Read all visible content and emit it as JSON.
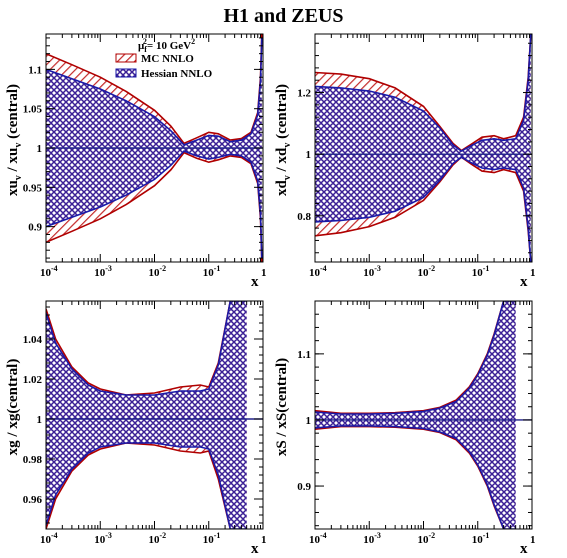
{
  "title": "H1 and ZEUS",
  "legend": {
    "scale_label": "μ",
    "scale_sub": "f",
    "scale_sup": "2",
    "scale_value": "= 10 GeV",
    "scale_unit_sup": "2",
    "entries": [
      {
        "name": "MC NNLO",
        "color": "#b00000",
        "pattern": "diagonal-hatch"
      },
      {
        "name": "Hessian NNLO",
        "color": "#1a1aa8",
        "pattern": "cross-hatch"
      }
    ]
  },
  "colors": {
    "mc": "#b00000",
    "mc_hatch": "#c42a2a",
    "hessian": "#1a1aa8",
    "hessian_hatch": "#3a1f95",
    "center_line": "#20208a"
  },
  "chart_data": [
    {
      "type": "area",
      "panel": "top-left",
      "ylabel_main": "xu",
      "ylabel_sub1": "v",
      "ylabel_mid": " / xu",
      "ylabel_sub2": "v",
      "ylabel_end": " (central)",
      "xlabel": "x",
      "x_scale": "log",
      "xlim": [
        0.0001,
        1
      ],
      "ylim": [
        0.855,
        1.145
      ],
      "x_ticks": [
        {
          "value": 0.0001,
          "base": "10",
          "exp": "-4"
        },
        {
          "value": 0.001,
          "base": "10",
          "exp": "-3"
        },
        {
          "value": 0.01,
          "base": "10",
          "exp": "-2"
        },
        {
          "value": 0.1,
          "base": "10",
          "exp": "-1"
        },
        {
          "value": 1,
          "base": "1",
          "exp": ""
        }
      ],
      "y_ticks": [
        0.9,
        0.95,
        1,
        1.05,
        1.1
      ],
      "y_tick_labels": [
        "0.9",
        "0.95",
        "1",
        "1.05",
        "1.1"
      ],
      "series": [
        {
          "name": "MC NNLO",
          "x": [
            0.0001,
            0.0003,
            0.001,
            0.003,
            0.01,
            0.02,
            0.035,
            0.06,
            0.1,
            0.15,
            0.25,
            0.4,
            0.6,
            0.8,
            0.9,
            0.95
          ],
          "upper": [
            1.12,
            1.106,
            1.09,
            1.072,
            1.048,
            1.028,
            1.006,
            1.013,
            1.02,
            1.018,
            1.01,
            1.012,
            1.02,
            1.045,
            1.09,
            1.145
          ],
          "lower": [
            0.88,
            0.894,
            0.91,
            0.928,
            0.952,
            0.972,
            0.994,
            0.987,
            0.982,
            0.985,
            0.99,
            0.988,
            0.98,
            0.955,
            0.91,
            0.855
          ]
        },
        {
          "name": "Hessian NNLO",
          "x": [
            0.0001,
            0.0003,
            0.001,
            0.003,
            0.01,
            0.02,
            0.035,
            0.06,
            0.1,
            0.15,
            0.25,
            0.4,
            0.6,
            0.8,
            0.9,
            0.95
          ],
          "upper": [
            1.1,
            1.088,
            1.075,
            1.06,
            1.04,
            1.022,
            1.004,
            1.01,
            1.016,
            1.015,
            1.008,
            1.01,
            1.018,
            1.042,
            1.085,
            1.14
          ],
          "lower": [
            0.9,
            0.912,
            0.925,
            0.94,
            0.96,
            0.978,
            0.996,
            0.99,
            0.986,
            0.988,
            0.992,
            0.99,
            0.982,
            0.958,
            0.915,
            0.86
          ]
        }
      ]
    },
    {
      "type": "area",
      "panel": "top-right",
      "ylabel_main": "xd",
      "ylabel_sub1": "v",
      "ylabel_mid": " / xd",
      "ylabel_sub2": "v",
      "ylabel_end": " (central)",
      "xlabel": "x",
      "x_scale": "log",
      "xlim": [
        0.0001,
        1
      ],
      "ylim": [
        0.65,
        1.39
      ],
      "x_ticks": [
        {
          "value": 0.0001,
          "base": "10",
          "exp": "-4"
        },
        {
          "value": 0.001,
          "base": "10",
          "exp": "-3"
        },
        {
          "value": 0.01,
          "base": "10",
          "exp": "-2"
        },
        {
          "value": 0.1,
          "base": "10",
          "exp": "-1"
        },
        {
          "value": 1,
          "base": "1",
          "exp": ""
        }
      ],
      "y_ticks": [
        0.8,
        1,
        1.2
      ],
      "y_tick_labels": [
        "0.8",
        "1",
        "1.2"
      ],
      "series": [
        {
          "name": "MC NNLO",
          "x": [
            0.0001,
            0.0003,
            0.001,
            0.003,
            0.01,
            0.02,
            0.035,
            0.05,
            0.08,
            0.12,
            0.2,
            0.3,
            0.5,
            0.7,
            0.85,
            0.95
          ],
          "upper": [
            1.265,
            1.26,
            1.245,
            1.215,
            1.155,
            1.09,
            1.035,
            1.012,
            1.035,
            1.055,
            1.06,
            1.05,
            1.06,
            1.12,
            1.25,
            1.39
          ],
          "lower": [
            0.735,
            0.745,
            0.765,
            0.795,
            0.85,
            0.91,
            0.965,
            0.99,
            0.965,
            0.945,
            0.94,
            0.95,
            0.94,
            0.88,
            0.75,
            0.65
          ]
        },
        {
          "name": "Hessian NNLO",
          "x": [
            0.0001,
            0.0003,
            0.001,
            0.003,
            0.01,
            0.02,
            0.035,
            0.05,
            0.08,
            0.12,
            0.2,
            0.3,
            0.5,
            0.7,
            0.85,
            0.95
          ],
          "upper": [
            1.22,
            1.215,
            1.205,
            1.185,
            1.14,
            1.085,
            1.03,
            1.01,
            1.03,
            1.045,
            1.05,
            1.045,
            1.05,
            1.11,
            1.24,
            1.39
          ],
          "lower": [
            0.78,
            0.785,
            0.795,
            0.815,
            0.86,
            0.915,
            0.97,
            0.99,
            0.97,
            0.955,
            0.95,
            0.955,
            0.95,
            0.89,
            0.76,
            0.65
          ]
        }
      ]
    },
    {
      "type": "area",
      "panel": "bottom-left",
      "ylabel_main": "xg / xg(central)",
      "ylabel_sub1": "",
      "ylabel_mid": "",
      "ylabel_sub2": "",
      "ylabel_end": "",
      "xlabel": "x",
      "x_scale": "log",
      "xlim": [
        0.0001,
        1
      ],
      "ylim": [
        0.945,
        1.059
      ],
      "x_ticks": [
        {
          "value": 0.0001,
          "base": "10",
          "exp": "-4"
        },
        {
          "value": 0.001,
          "base": "10",
          "exp": "-3"
        },
        {
          "value": 0.01,
          "base": "10",
          "exp": "-2"
        },
        {
          "value": 0.1,
          "base": "10",
          "exp": "-1"
        },
        {
          "value": 1,
          "base": "1",
          "exp": ""
        }
      ],
      "y_ticks": [
        0.96,
        0.98,
        1,
        1.02,
        1.04
      ],
      "y_tick_labels": [
        "0.96",
        "0.98",
        "1",
        "1.02",
        "1.04"
      ],
      "series": [
        {
          "name": "MC NNLO",
          "x": [
            0.0001,
            0.00015,
            0.0003,
            0.0006,
            0.001,
            0.003,
            0.01,
            0.03,
            0.07,
            0.1,
            0.15,
            0.25,
            0.35,
            0.5
          ],
          "upper": [
            1.055,
            1.04,
            1.026,
            1.018,
            1.015,
            1.012,
            1.013,
            1.016,
            1.017,
            1.016,
            1.028,
            1.059,
            1.059,
            1.059
          ],
          "lower": [
            0.945,
            0.96,
            0.974,
            0.982,
            0.985,
            0.988,
            0.987,
            0.984,
            0.983,
            0.984,
            0.97,
            0.945,
            0.945,
            0.945
          ]
        },
        {
          "name": "Hessian NNLO",
          "x": [
            0.0001,
            0.00015,
            0.0003,
            0.0006,
            0.001,
            0.003,
            0.01,
            0.03,
            0.07,
            0.1,
            0.15,
            0.25,
            0.35,
            0.5
          ],
          "upper": [
            1.053,
            1.038,
            1.025,
            1.017,
            1.014,
            1.012,
            1.012,
            1.014,
            1.014,
            1.015,
            1.027,
            1.059,
            1.059,
            1.059
          ],
          "lower": [
            0.947,
            0.962,
            0.975,
            0.983,
            0.986,
            0.988,
            0.988,
            0.986,
            0.986,
            0.985,
            0.972,
            0.945,
            0.945,
            0.945
          ]
        }
      ]
    },
    {
      "type": "area",
      "panel": "bottom-right",
      "ylabel_main": "xS / xS(central)",
      "ylabel_sub1": "",
      "ylabel_mid": "",
      "ylabel_sub2": "",
      "ylabel_end": "",
      "xlabel": "x",
      "x_scale": "log",
      "xlim": [
        0.0001,
        1
      ],
      "ylim": [
        0.835,
        1.18
      ],
      "x_ticks": [
        {
          "value": 0.0001,
          "base": "10",
          "exp": "-4"
        },
        {
          "value": 0.001,
          "base": "10",
          "exp": "-3"
        },
        {
          "value": 0.01,
          "base": "10",
          "exp": "-2"
        },
        {
          "value": 0.1,
          "base": "10",
          "exp": "-1"
        },
        {
          "value": 1,
          "base": "1",
          "exp": ""
        }
      ],
      "y_ticks": [
        0.9,
        1,
        1.1
      ],
      "y_tick_labels": [
        "0.9",
        "1",
        "1.1"
      ],
      "series": [
        {
          "name": "MC NNLO",
          "x": [
            0.0001,
            0.0003,
            0.001,
            0.003,
            0.01,
            0.02,
            0.04,
            0.07,
            0.1,
            0.15,
            0.2,
            0.3,
            0.4,
            0.5
          ],
          "upper": [
            1.014,
            1.01,
            1.01,
            1.011,
            1.014,
            1.019,
            1.03,
            1.05,
            1.07,
            1.1,
            1.13,
            1.18,
            1.18,
            1.18
          ],
          "lower": [
            0.986,
            0.99,
            0.99,
            0.989,
            0.986,
            0.981,
            0.97,
            0.95,
            0.93,
            0.9,
            0.87,
            0.835,
            0.835,
            0.835
          ]
        },
        {
          "name": "Hessian NNLO",
          "x": [
            0.0001,
            0.0003,
            0.001,
            0.003,
            0.01,
            0.02,
            0.04,
            0.07,
            0.1,
            0.15,
            0.2,
            0.3,
            0.4,
            0.5
          ],
          "upper": [
            1.012,
            1.009,
            1.009,
            1.01,
            1.013,
            1.018,
            1.028,
            1.048,
            1.068,
            1.098,
            1.128,
            1.18,
            1.18,
            1.18
          ],
          "lower": [
            0.988,
            0.991,
            0.991,
            0.99,
            0.987,
            0.982,
            0.972,
            0.952,
            0.932,
            0.902,
            0.872,
            0.835,
            0.835,
            0.835
          ]
        }
      ]
    }
  ]
}
